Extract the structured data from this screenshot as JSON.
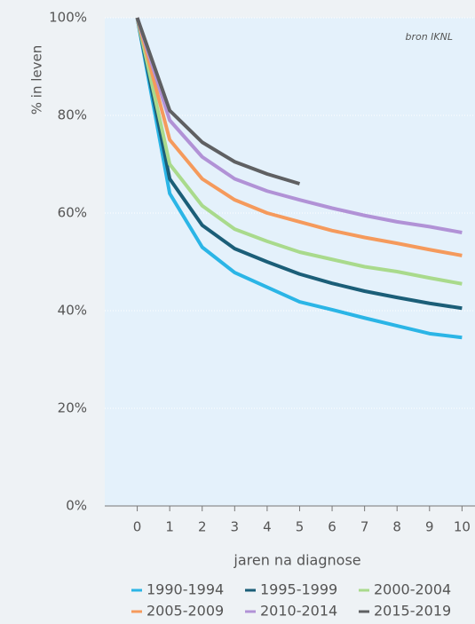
{
  "chart_data": {
    "type": "line",
    "annotation": "bron IKNL",
    "xlabel": "jaren na diagnose",
    "ylabel": "% in leven",
    "x": [
      0,
      1,
      2,
      3,
      4,
      5,
      6,
      7,
      8,
      9,
      10
    ],
    "xlim": [
      -1,
      10.4
    ],
    "xticks": [
      0,
      1,
      2,
      3,
      4,
      5,
      6,
      7,
      8,
      9,
      10
    ],
    "ylim": [
      0,
      100
    ],
    "yticks": [
      {
        "value": 0,
        "label": "0%"
      },
      {
        "value": 20,
        "label": "20%"
      },
      {
        "value": 40,
        "label": "40%"
      },
      {
        "value": 60,
        "label": "60%"
      },
      {
        "value": 80,
        "label": "80%"
      },
      {
        "value": 100,
        "label": "100%"
      }
    ],
    "grid": true,
    "series": [
      {
        "name": "1990-1994",
        "color": "#2bb5e6",
        "values": [
          100,
          64,
          53,
          47.8,
          44.8,
          41.8,
          40.2,
          38.5,
          36.9,
          35.3,
          34.5
        ]
      },
      {
        "name": "1995-1999",
        "color": "#1b5e78",
        "values": [
          100,
          67,
          57.5,
          52.7,
          50,
          47.5,
          45.6,
          44,
          42.7,
          41.5,
          40.5
        ]
      },
      {
        "name": "2000-2004",
        "color": "#a9da8c",
        "values": [
          100,
          70,
          61.5,
          56.7,
          54.2,
          52,
          50.5,
          49,
          48,
          46.7,
          45.5
        ]
      },
      {
        "name": "2005-2009",
        "color": "#f59a5c",
        "values": [
          100,
          75,
          67,
          62.7,
          60,
          58.2,
          56.4,
          55,
          53.8,
          52.5,
          51.3
        ]
      },
      {
        "name": "2010-2014",
        "color": "#b192d6",
        "values": [
          100,
          79,
          71.5,
          67,
          64.5,
          62.7,
          61,
          59.5,
          58.2,
          57.2,
          56
        ]
      },
      {
        "name": "2015-2019",
        "color": "#5f6062",
        "values": [
          100,
          81,
          74.5,
          70.5,
          68,
          66,
          null,
          null,
          null,
          null,
          null
        ]
      }
    ]
  }
}
